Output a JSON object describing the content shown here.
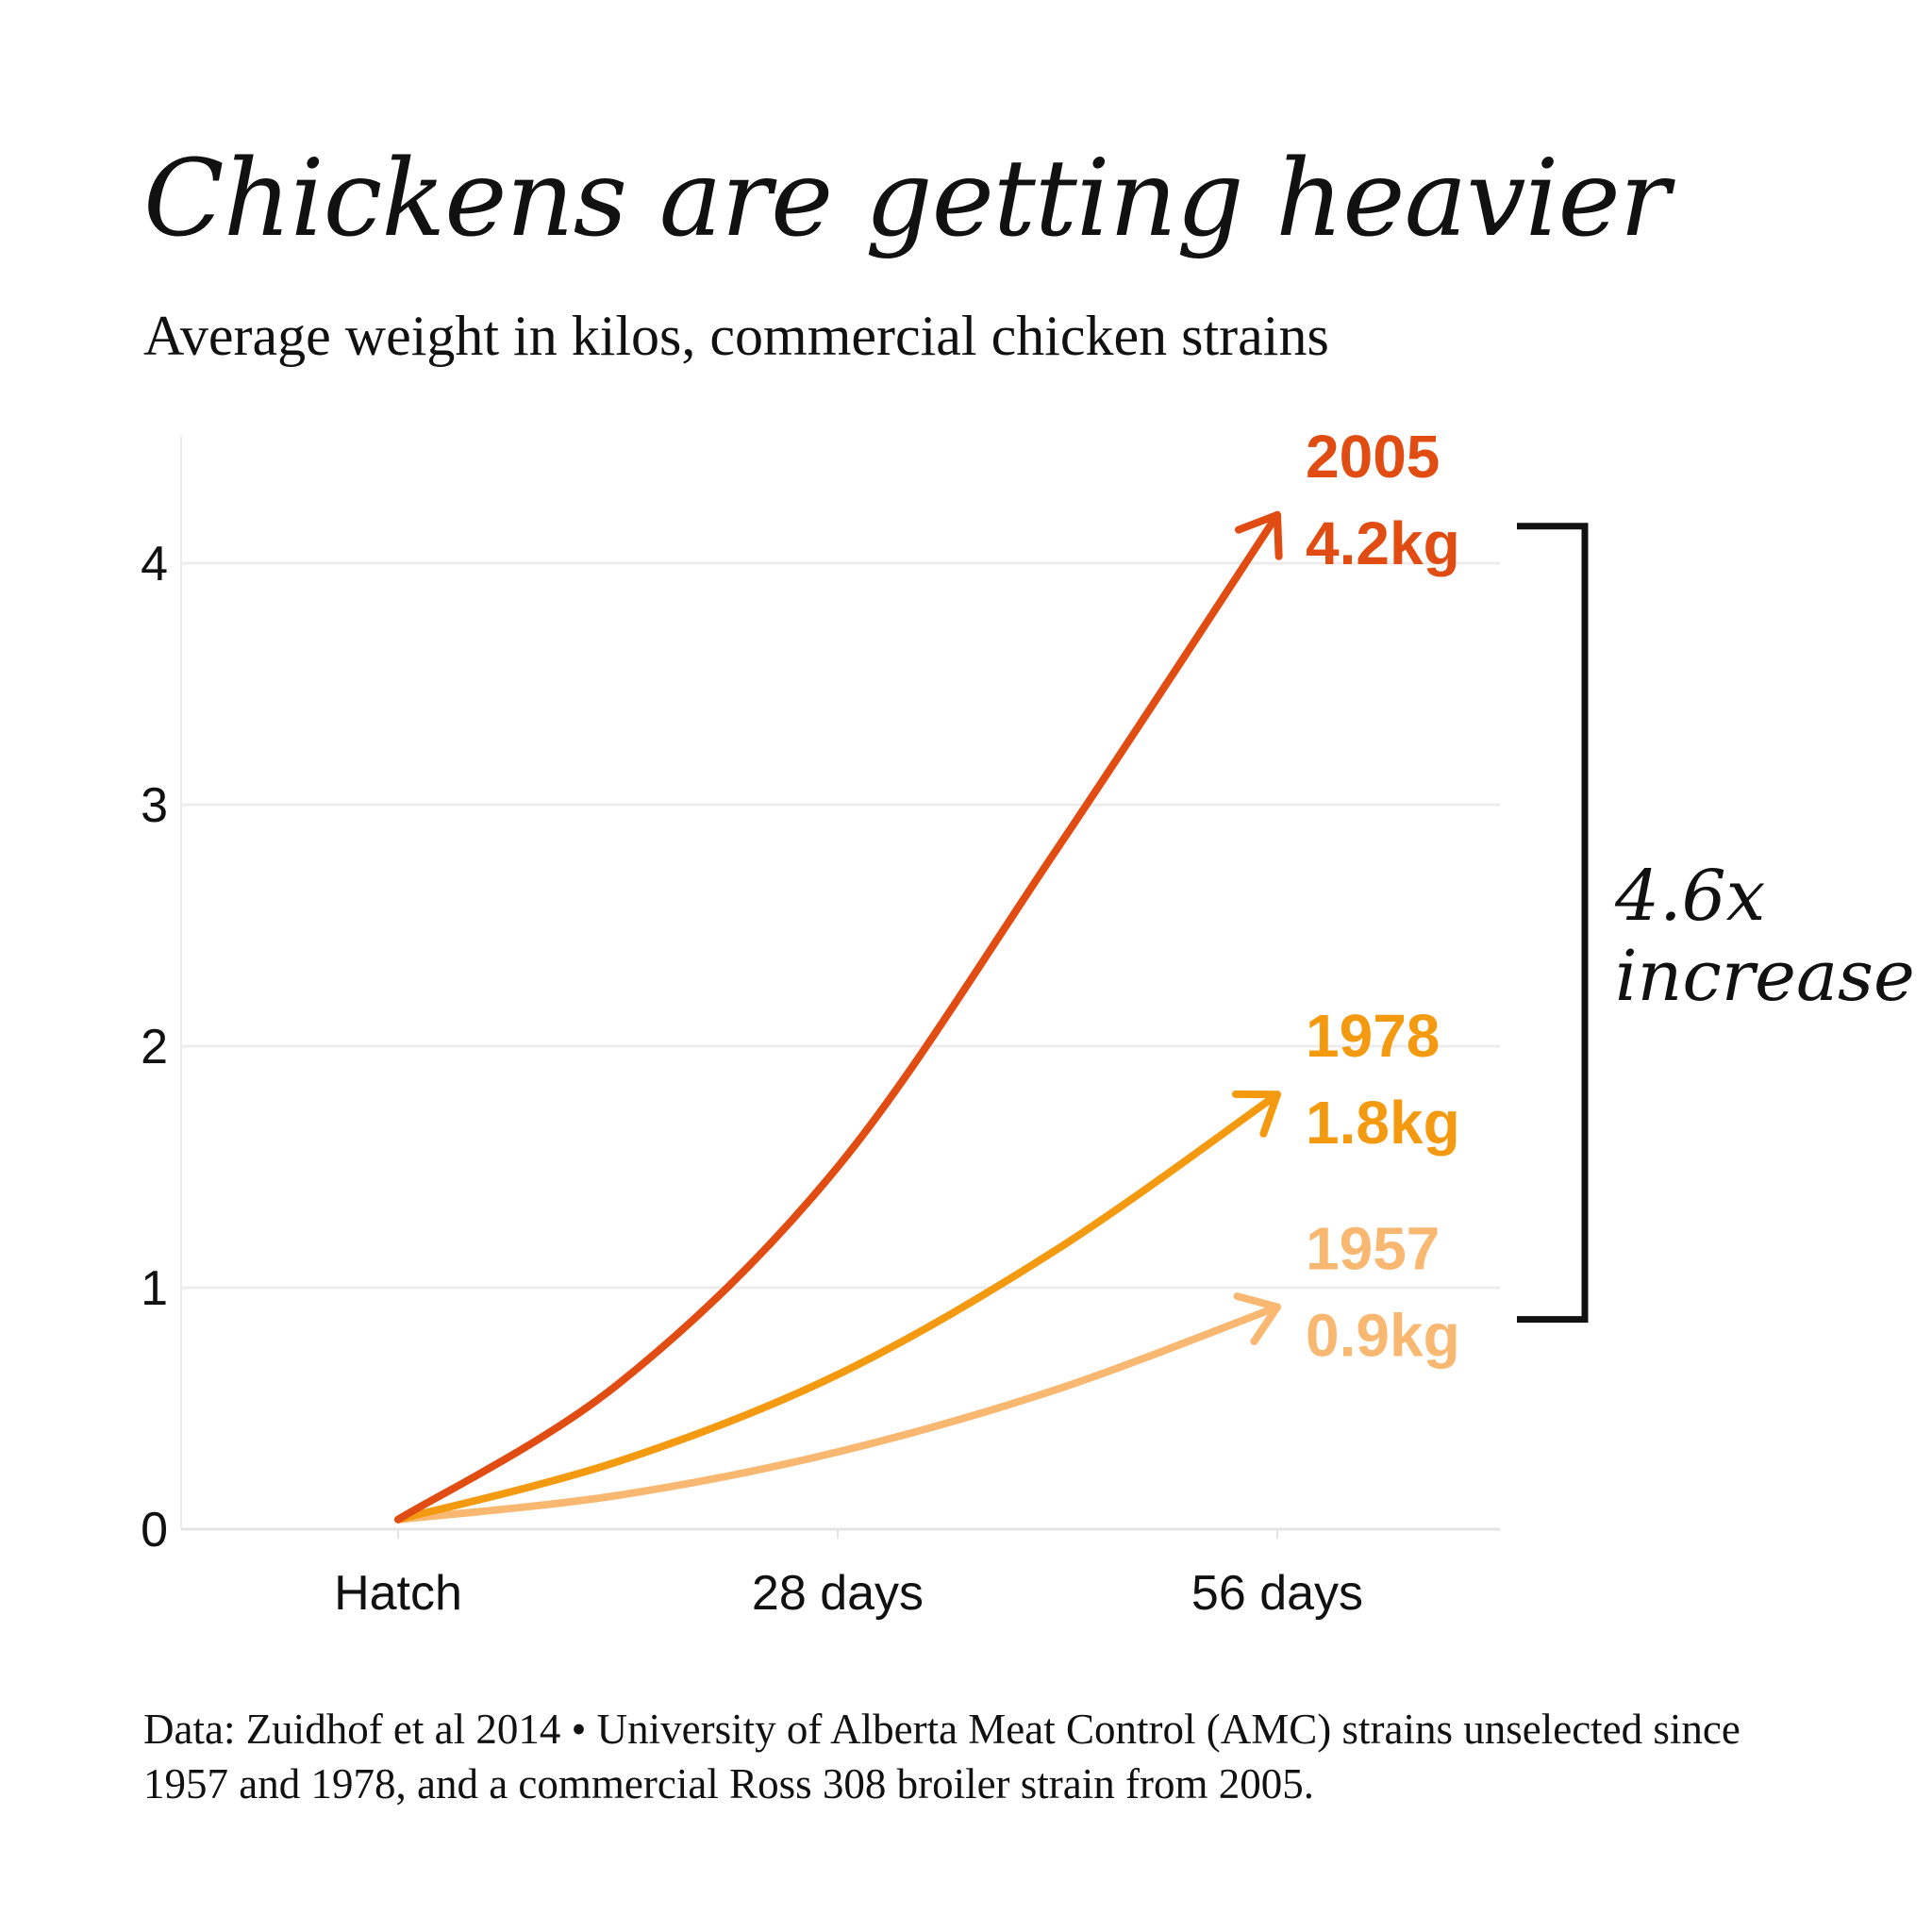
{
  "title": "Chickens are getting heavier",
  "subtitle": "Average weight in kilos, commercial chicken strains",
  "footnote": "Data: Zuidhof et al 2014 • University of Alberta Meat Control (AMC) strains unselected since 1957 and 1978, and a commercial Ross 308 broiler strain from 2005.",
  "chart_data": {
    "type": "line",
    "categories": [
      "Hatch",
      "28 days",
      "56 days"
    ],
    "x": [
      0,
      28,
      56
    ],
    "ylim": [
      0,
      4.5
    ],
    "yticks": [
      0,
      1,
      2,
      3,
      4
    ],
    "grid": true,
    "series": [
      {
        "name": "1957",
        "end_label": "0.9kg",
        "color": "#f9b872",
        "points": [
          [
            0,
            0.04
          ],
          [
            14,
            0.14
          ],
          [
            28,
            0.32
          ],
          [
            42,
            0.58
          ],
          [
            56,
            0.92
          ]
        ]
      },
      {
        "name": "1978",
        "end_label": "1.8kg",
        "color": "#f39a10",
        "points": [
          [
            0,
            0.04
          ],
          [
            14,
            0.28
          ],
          [
            28,
            0.64
          ],
          [
            42,
            1.16
          ],
          [
            56,
            1.8
          ]
        ]
      },
      {
        "name": "2005",
        "end_label": "4.2kg",
        "color": "#e04c12",
        "points": [
          [
            0,
            0.04
          ],
          [
            14,
            0.6
          ],
          [
            28,
            1.5
          ],
          [
            42,
            2.82
          ],
          [
            56,
            4.2
          ]
        ]
      }
    ],
    "annotation": {
      "line1": "4.6x",
      "line2": "increase",
      "from": 0.9,
      "to": 4.2
    }
  }
}
